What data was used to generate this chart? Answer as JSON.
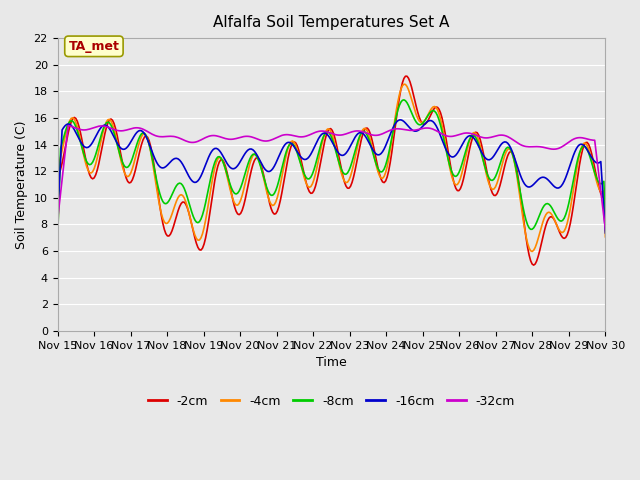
{
  "title": "Alfalfa Soil Temperatures Set A",
  "xlabel": "Time",
  "ylabel": "Soil Temperature (C)",
  "ylim": [
    0,
    22
  ],
  "yticks": [
    0,
    2,
    4,
    6,
    8,
    10,
    12,
    14,
    16,
    18,
    20,
    22
  ],
  "bg_color": "#e8e8e8",
  "annotation_text": "TA_met",
  "annotation_bg": "#ffffcc",
  "annotation_edge": "#999900",
  "annotation_color": "#aa0000",
  "series_labels": [
    "-2cm",
    "-4cm",
    "-8cm",
    "-16cm",
    "-32cm"
  ],
  "series_colors": [
    "#dd0000",
    "#ff8800",
    "#00cc00",
    "#0000cc",
    "#cc00cc"
  ],
  "x_start": 15,
  "x_end": 30,
  "xtick_positions": [
    15,
    16,
    17,
    18,
    19,
    20,
    21,
    22,
    23,
    24,
    25,
    26,
    27,
    28,
    29,
    30
  ],
  "xtick_labels": [
    "Nov 15",
    "Nov 16",
    "Nov 17",
    "Nov 18",
    "Nov 19",
    "Nov 20",
    "Nov 21",
    "Nov 22",
    "Nov 23",
    "Nov 24",
    "Nov 25",
    "Nov 26",
    "Nov 27",
    "Nov 28",
    "Nov 29",
    "Nov 30"
  ]
}
